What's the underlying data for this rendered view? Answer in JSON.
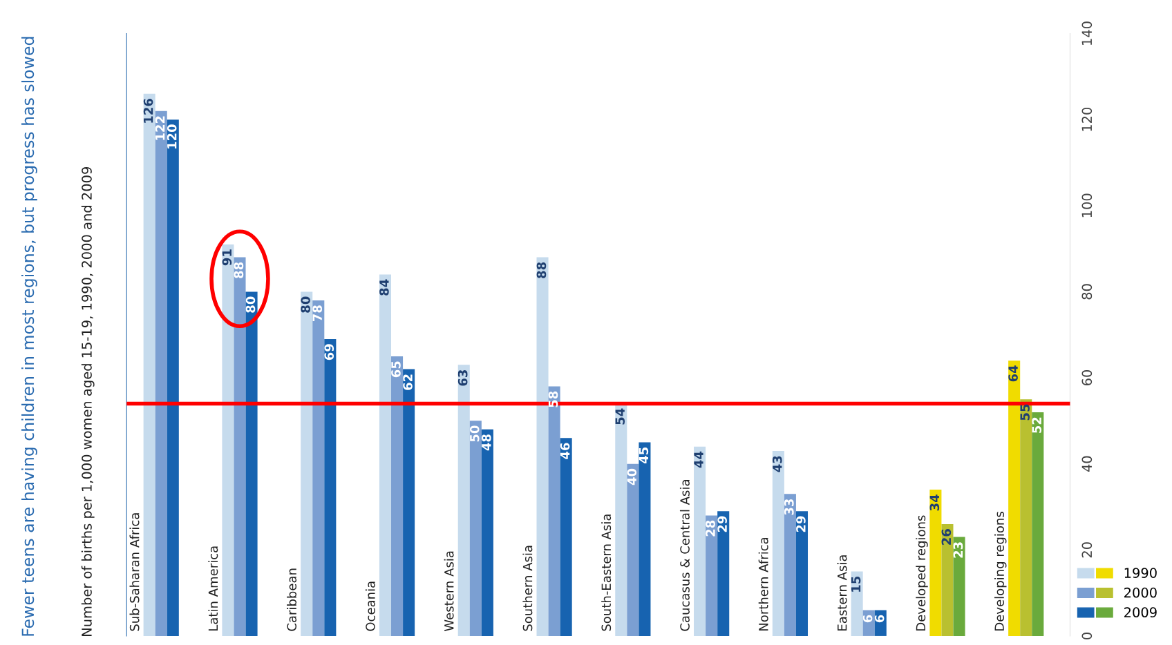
{
  "chart_data": {
    "type": "bar",
    "title": "Fewer teens are having children in most regions, but progress has slowed",
    "subtitle": "Number of births per 1,000 women aged 15-19, 1990, 2000 and 2009",
    "categories": [
      "Sub-Saharan Africa",
      "Latin America",
      "Caribbean",
      "Oceania",
      "Western Asia",
      "Southern Asia",
      "South-Eastern Asia",
      "Caucasus & Central Asia",
      "Northern Africa",
      "Eastern Asia",
      "Developed regions",
      "Developing regions"
    ],
    "series": [
      {
        "name": "1990",
        "color": "#c6dbed",
        "colors": [
          "#c6dbed",
          "#c6dbed",
          "#c6dbed",
          "#c6dbed",
          "#c6dbed",
          "#c6dbed",
          "#c6dbed",
          "#c6dbed",
          "#c6dbed",
          "#c6dbed",
          "#f0dc00",
          "#f0dc00"
        ],
        "values": [
          126,
          91,
          80,
          84,
          63,
          88,
          54,
          44,
          43,
          15,
          34,
          64
        ]
      },
      {
        "name": "2000",
        "color": "#7b9fd2",
        "colors": [
          "#7b9fd2",
          "#7b9fd2",
          "#7b9fd2",
          "#7b9fd2",
          "#7b9fd2",
          "#7b9fd2",
          "#7b9fd2",
          "#7b9fd2",
          "#7b9fd2",
          "#7b9fd2",
          "#b9c030",
          "#b9c030"
        ],
        "values": [
          122,
          88,
          78,
          65,
          50,
          58,
          40,
          28,
          33,
          6,
          26,
          55
        ]
      },
      {
        "name": "2009",
        "color": "#1763b0",
        "colors": [
          "#1763b0",
          "#1763b0",
          "#1763b0",
          "#1763b0",
          "#1763b0",
          "#1763b0",
          "#1763b0",
          "#1763b0",
          "#1763b0",
          "#1763b0",
          "#6aaa3c",
          "#6aaa3c"
        ],
        "values": [
          120,
          80,
          69,
          62,
          48,
          46,
          45,
          29,
          29,
          6,
          23,
          52
        ]
      }
    ],
    "ylim": [
      0,
      140
    ],
    "yticks": [
      0,
      20,
      40,
      60,
      80,
      100,
      120,
      140
    ],
    "data_labels": true,
    "grid": false,
    "legend": "bottom right",
    "ref_lines": [
      {
        "axis": "y",
        "value": 54,
        "color": "#ff0000"
      }
    ]
  }
}
